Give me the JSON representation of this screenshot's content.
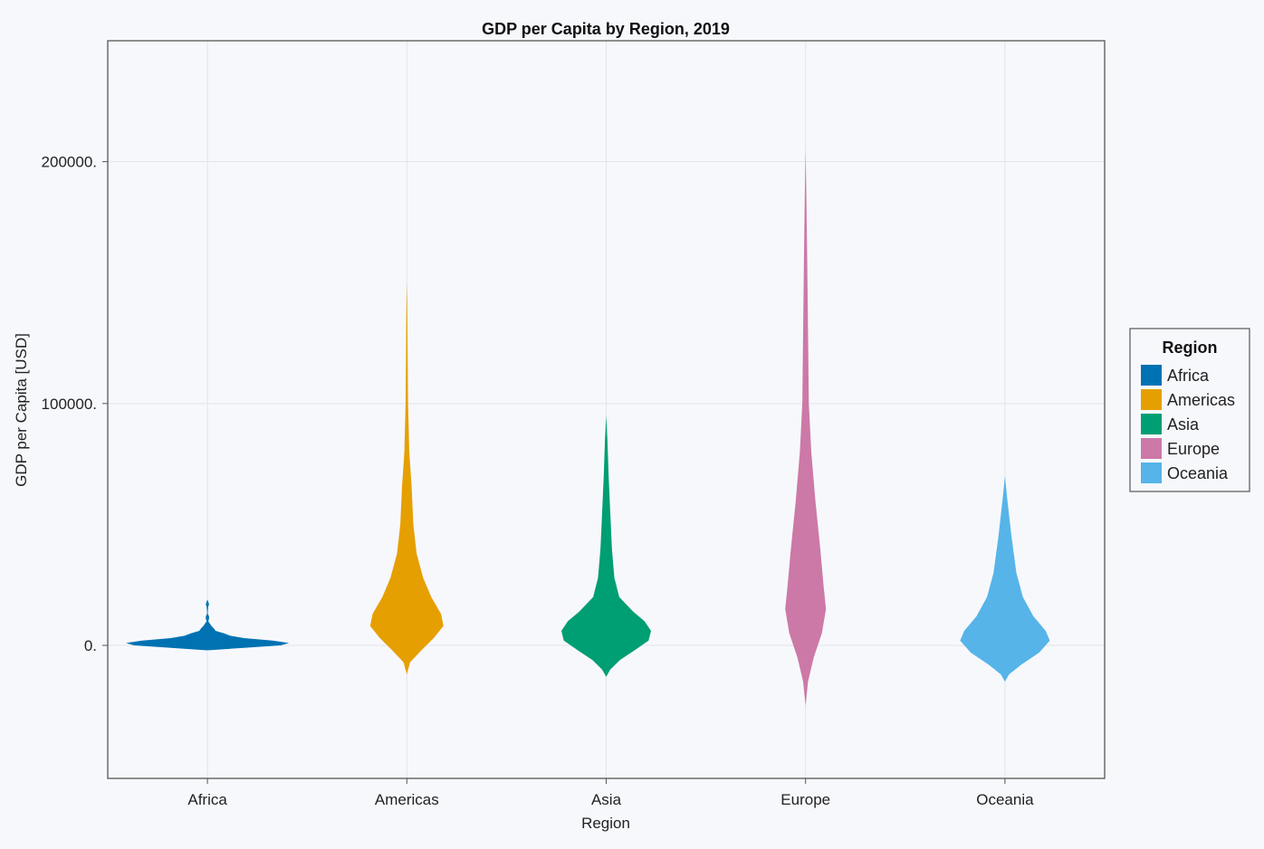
{
  "chart_data": {
    "type": "violin",
    "title": "GDP per Capita by Region, 2019",
    "xlabel": "Region",
    "ylabel": "GDP per Capita [USD]",
    "categories": [
      "Africa",
      "Americas",
      "Asia",
      "Europe",
      "Oceania"
    ],
    "y_ticks": [
      0,
      100000,
      200000
    ],
    "y_tick_labels": [
      "0.",
      "100000.",
      "200000."
    ],
    "ylim": [
      -55000,
      250000
    ],
    "grid": true,
    "legend": {
      "title": "Region",
      "placement": "right",
      "entries": [
        "Africa",
        "Americas",
        "Asia",
        "Europe",
        "Oceania"
      ]
    },
    "series": [
      {
        "name": "Africa",
        "color": "#0072b2",
        "density": [
          [
            -2000,
            0.02
          ],
          [
            -1000,
            0.45
          ],
          [
            0,
            0.9
          ],
          [
            1000,
            1.0
          ],
          [
            2000,
            0.8
          ],
          [
            3000,
            0.45
          ],
          [
            4000,
            0.28
          ],
          [
            5000,
            0.2
          ],
          [
            6000,
            0.1
          ],
          [
            7000,
            0.08
          ],
          [
            8000,
            0.05
          ],
          [
            9000,
            0.03
          ],
          [
            10000,
            0.01
          ],
          [
            11000,
            0.02
          ],
          [
            12000,
            0.02
          ],
          [
            13000,
            0.005
          ],
          [
            14000,
            0.005
          ],
          [
            16000,
            0.01
          ],
          [
            17000,
            0.02
          ],
          [
            18000,
            0.01
          ],
          [
            19000,
            0
          ]
        ]
      },
      {
        "name": "Americas",
        "color": "#e69f00",
        "density": [
          [
            -12000,
            0
          ],
          [
            -7000,
            0.04
          ],
          [
            -2000,
            0.18
          ],
          [
            3000,
            0.33
          ],
          [
            8000,
            0.45
          ],
          [
            13000,
            0.42
          ],
          [
            20000,
            0.3
          ],
          [
            28000,
            0.2
          ],
          [
            38000,
            0.12
          ],
          [
            50000,
            0.08
          ],
          [
            65000,
            0.06
          ],
          [
            80000,
            0.03
          ],
          [
            100000,
            0.015
          ],
          [
            120000,
            0.01
          ],
          [
            140000,
            0.005
          ],
          [
            150000,
            0
          ]
        ]
      },
      {
        "name": "Asia",
        "color": "#009e73",
        "density": [
          [
            -13000,
            0
          ],
          [
            -10000,
            0.05
          ],
          [
            -6000,
            0.17
          ],
          [
            -2000,
            0.35
          ],
          [
            2000,
            0.52
          ],
          [
            6000,
            0.55
          ],
          [
            10000,
            0.47
          ],
          [
            14000,
            0.33
          ],
          [
            20000,
            0.16
          ],
          [
            28000,
            0.1
          ],
          [
            40000,
            0.07
          ],
          [
            55000,
            0.05
          ],
          [
            70000,
            0.03
          ],
          [
            85000,
            0.015
          ],
          [
            95000,
            0
          ]
        ]
      },
      {
        "name": "Europe",
        "color": "#cc79a7",
        "density": [
          [
            -25000,
            0
          ],
          [
            -15000,
            0.03
          ],
          [
            -5000,
            0.1
          ],
          [
            5000,
            0.2
          ],
          [
            15000,
            0.25
          ],
          [
            25000,
            0.22
          ],
          [
            40000,
            0.18
          ],
          [
            60000,
            0.12
          ],
          [
            80000,
            0.07
          ],
          [
            100000,
            0.04
          ],
          [
            130000,
            0.03
          ],
          [
            160000,
            0.02
          ],
          [
            185000,
            0.01
          ],
          [
            205000,
            0
          ]
        ]
      },
      {
        "name": "Oceania",
        "color": "#56b4e9",
        "density": [
          [
            -15000,
            0
          ],
          [
            -12000,
            0.05
          ],
          [
            -8000,
            0.2
          ],
          [
            -3000,
            0.42
          ],
          [
            2000,
            0.55
          ],
          [
            6000,
            0.5
          ],
          [
            12000,
            0.35
          ],
          [
            20000,
            0.22
          ],
          [
            30000,
            0.14
          ],
          [
            45000,
            0.08
          ],
          [
            60000,
            0.03
          ],
          [
            70000,
            0
          ]
        ]
      }
    ]
  }
}
